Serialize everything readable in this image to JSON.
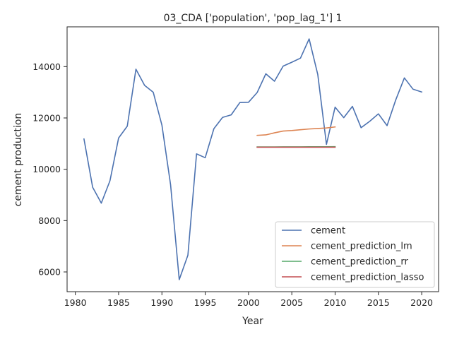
{
  "chart_data": {
    "type": "line",
    "title": "03_CDA ['population', 'pop_lag_1'] 1",
    "xlabel": "Year",
    "ylabel": "cement production",
    "xlim": [
      1979.05,
      2021.95
    ],
    "ylim": [
      5230,
      15550
    ],
    "xticks": [
      1980,
      1985,
      1990,
      1995,
      2000,
      2005,
      2010,
      2015,
      2020
    ],
    "yticks": [
      6000,
      8000,
      10000,
      12000,
      14000
    ],
    "grid": false,
    "legend_position": "lower-right",
    "series": [
      {
        "name": "cement",
        "color": "#4c72b0",
        "x": [
          1981,
          1982,
          1983,
          1984,
          1985,
          1986,
          1987,
          1988,
          1989,
          1990,
          1991,
          1992,
          1993,
          1994,
          1995,
          1996,
          1997,
          1998,
          1999,
          2000,
          2001,
          2002,
          2003,
          2004,
          2005,
          2006,
          2007,
          2008,
          2009,
          2010,
          2011,
          2012,
          2013,
          2014,
          2015,
          2016,
          2017,
          2018,
          2019,
          2020
        ],
        "y": [
          11180,
          9300,
          8680,
          9550,
          11220,
          11680,
          13900,
          13270,
          13000,
          11720,
          9400,
          5700,
          6650,
          10600,
          10450,
          11580,
          12020,
          12120,
          12600,
          12610,
          12990,
          13720,
          13430,
          14020,
          14170,
          14330,
          15080,
          13690,
          10970,
          12420,
          12010,
          12450,
          11620,
          11870,
          12160,
          11700,
          12700,
          13560,
          13120,
          13010
        ]
      },
      {
        "name": "cement_prediction_lm",
        "color": "#dd8452",
        "x": [
          2001,
          2002,
          2003,
          2004,
          2005,
          2006,
          2007,
          2008,
          2009,
          2010
        ],
        "y": [
          11320,
          11340,
          11420,
          11490,
          11510,
          11540,
          11570,
          11590,
          11610,
          11650
        ]
      },
      {
        "name": "cement_prediction_rr",
        "color": "#55a868",
        "x": [
          2001,
          2002,
          2003,
          2004,
          2005,
          2006,
          2007,
          2008,
          2009,
          2010
        ],
        "y": [
          10870,
          10871,
          10872,
          10873,
          10874,
          10875,
          10876,
          10877,
          10878,
          10879
        ]
      },
      {
        "name": "cement_prediction_lasso",
        "color": "#c44e52",
        "x": [
          2001,
          2002,
          2003,
          2004,
          2005,
          2006,
          2007,
          2008,
          2009,
          2010
        ],
        "y": [
          10860,
          10860,
          10860,
          10860,
          10860,
          10860,
          10860,
          10860,
          10860,
          10860
        ]
      }
    ]
  }
}
